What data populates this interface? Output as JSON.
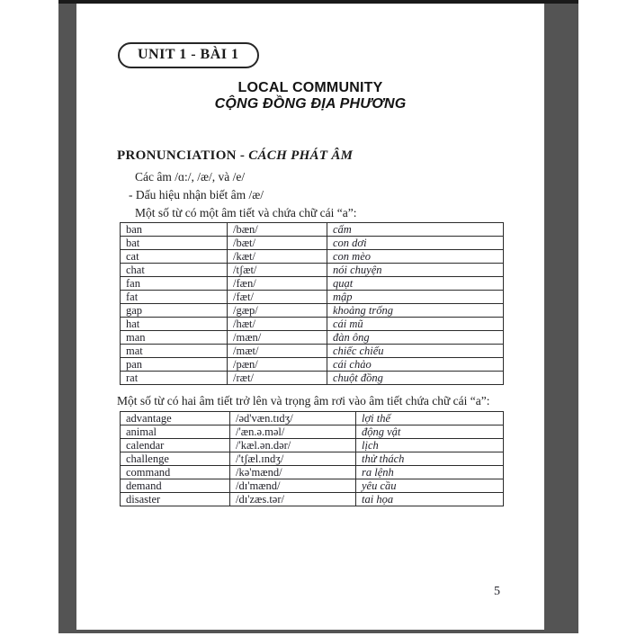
{
  "page": {
    "unit_badge": "UNIT 1 - BÀI 1",
    "title_en": "LOCAL COMMUNITY",
    "title_vi": "CỘNG ĐỒNG ĐỊA PHƯƠNG",
    "section_heading_en": "PRONUNCIATION - ",
    "section_heading_vi": "CÁCH PHÁT ÂM",
    "intro_line_1": "Các âm /ɑ:/, /æ/, và /e/",
    "intro_line_2": "- Dấu hiệu nhận biết âm /æ/",
    "intro_line_3": "Một số từ có một âm tiết và chứa chữ cái “a”:",
    "between_text": "Một số từ có hai âm tiết trở lên và trọng âm rơi vào âm tiết chứa chữ cái “a”:",
    "page_number": "5",
    "table1": {
      "rows": [
        [
          "ban",
          "/bæn/",
          "cấm"
        ],
        [
          "bat",
          "/bæt/",
          "con dơi"
        ],
        [
          "cat",
          "/kæt/",
          "con mèo"
        ],
        [
          "chat",
          "/tʃæt/",
          "nói chuyện"
        ],
        [
          "fan",
          "/fæn/",
          "quạt"
        ],
        [
          "fat",
          "/fæt/",
          "mập"
        ],
        [
          "gap",
          "/gæp/",
          "khoảng trống"
        ],
        [
          "hat",
          "/hæt/",
          "cái mũ"
        ],
        [
          "man",
          "/mæn/",
          "đàn ông"
        ],
        [
          "mat",
          "/mæt/",
          "chiếc chiếu"
        ],
        [
          "pan",
          "/pæn/",
          "cái chảo"
        ],
        [
          "rat",
          "/ræt/",
          "chuột đồng"
        ]
      ]
    },
    "table2": {
      "rows": [
        [
          "advantage",
          "/əd'væn.tɪdʒ/",
          "lợi thế"
        ],
        [
          "animal",
          "/'æn.ə.məl/",
          "động vật"
        ],
        [
          "calendar",
          "/'kæl.ən.dər/",
          "lịch"
        ],
        [
          "challenge",
          "/'tʃæl.ɪndʒ/",
          "thử thách"
        ],
        [
          "command",
          "/kə'mænd/",
          "ra lệnh"
        ],
        [
          "demand",
          "/dɪ'mænd/",
          "yêu cầu"
        ],
        [
          "disaster",
          "/dɪ'zæs.tər/",
          "tai họa"
        ]
      ]
    },
    "colors": {
      "backdrop": "#545454",
      "top_bar": "#1a1a1a",
      "text": "#1d1d1d",
      "table_border": "#2b2b2b"
    }
  }
}
